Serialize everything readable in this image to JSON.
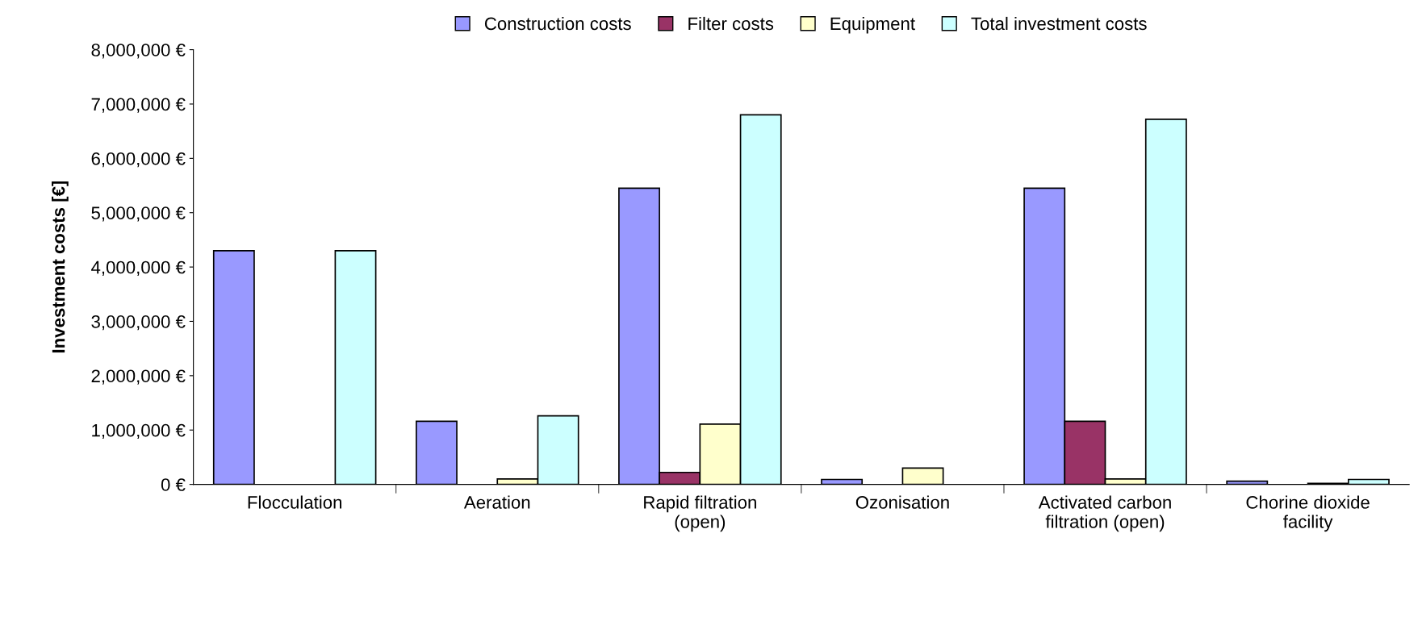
{
  "chart_data": {
    "type": "bar",
    "ylabel": "Investment costs [€]",
    "categories": [
      "Flocculation",
      "Aeration",
      "Rapid filtration\n(open)",
      "Ozonisation",
      "Activated carbon\nfiltration (open)",
      "Chorine dioxide\nfacility"
    ],
    "series": [
      {
        "name": "Construction costs",
        "color": "#9999ff",
        "values": [
          4300000,
          1160000,
          5450000,
          90000,
          5450000,
          60000
        ]
      },
      {
        "name": "Filter costs",
        "color": "#993366",
        "values": [
          null,
          null,
          220000,
          null,
          1160000,
          null
        ]
      },
      {
        "name": "Equipment",
        "color": "#ffffcc",
        "values": [
          null,
          100000,
          1110000,
          300000,
          100000,
          20000
        ]
      },
      {
        "name": "Total investment costs",
        "color": "#ccffff",
        "values": [
          4300000,
          1260000,
          6800000,
          null,
          6720000,
          90000
        ]
      }
    ],
    "ylim": [
      0,
      8000000
    ],
    "yticks": [
      {
        "value": 0,
        "label": "0 €"
      },
      {
        "value": 1000000,
        "label": "1,000,000 €"
      },
      {
        "value": 2000000,
        "label": "2,000,000 €"
      },
      {
        "value": 3000000,
        "label": "3,000,000 €"
      },
      {
        "value": 4000000,
        "label": "4,000,000 €"
      },
      {
        "value": 5000000,
        "label": "5,000,000 €"
      },
      {
        "value": 6000000,
        "label": "6,000,000 €"
      },
      {
        "value": 7000000,
        "label": "7,000,000 €"
      },
      {
        "value": 8000000,
        "label": "8,000,000 €"
      }
    ],
    "grid": false,
    "legend": "top"
  }
}
